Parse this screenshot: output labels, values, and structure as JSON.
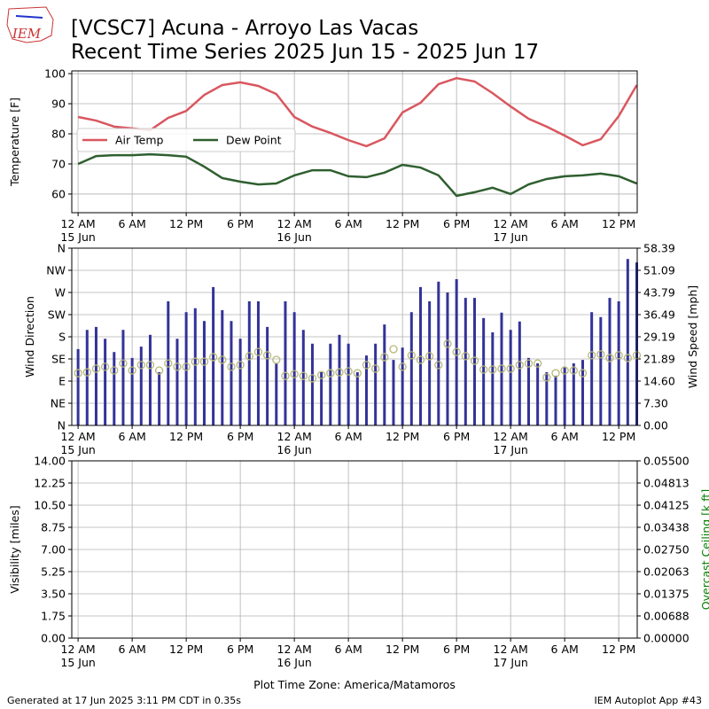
{
  "header": {
    "logo_text": "IEM",
    "title": "[VCSC7] Acuna - Arroyo Las Vacas",
    "subtitle": "Recent Time Series 2025 Jun 15 - 2025 Jun 17"
  },
  "footer": {
    "left": "Generated at 17 Jun 2025 3:11 PM CDT in 0.35s",
    "right": "IEM Autoplot App #43"
  },
  "chart_data": [
    {
      "type": "line",
      "y_label": "Temperature [F]",
      "grid": true,
      "legend": "center left",
      "xlim": [
        -0.7,
        62.05
      ],
      "ylim": [
        53.8,
        100.9
      ],
      "yticks": [
        60,
        70,
        80,
        90,
        100
      ],
      "xticks": [
        {
          "value": 0,
          "label": "12 AM\n15 Jun"
        },
        {
          "value": 6,
          "label": "6 AM"
        },
        {
          "value": 12,
          "label": "12 PM"
        },
        {
          "value": 18,
          "label": "6 PM"
        },
        {
          "value": 24,
          "label": "12 AM\n16 Jun"
        },
        {
          "value": 30,
          "label": "6 AM"
        },
        {
          "value": 36,
          "label": "12 PM"
        },
        {
          "value": 42,
          "label": "6 PM"
        },
        {
          "value": 48,
          "label": "12 AM\n17 Jun"
        },
        {
          "value": 54,
          "label": "6 AM"
        },
        {
          "value": 60,
          "label": "12 PM"
        }
      ],
      "x": [
        0,
        2,
        4,
        6,
        8,
        10,
        12,
        14,
        16,
        18,
        20,
        22,
        24,
        26,
        28,
        30,
        32,
        34,
        36,
        38,
        40,
        42,
        44,
        46,
        48,
        50,
        52,
        54,
        56,
        58,
        60,
        62
      ],
      "series": [
        {
          "name": "Air Temp",
          "color": "#d9575f",
          "values": [
            85.6,
            84.4,
            82.4,
            81.8,
            81.2,
            85.3,
            87.6,
            92.9,
            96.2,
            97.1,
            95.9,
            93.2,
            85.6,
            82.4,
            80.3,
            77.9,
            75.9,
            78.5,
            87.1,
            90.3,
            96.5,
            98.5,
            97.4,
            93.5,
            89.1,
            85.0,
            82.4,
            79.4,
            76.2,
            78.2,
            85.9,
            96.2
          ]
        },
        {
          "name": "Dew Point",
          "color": "#2f5f2f",
          "values": [
            70.0,
            72.6,
            72.9,
            72.9,
            73.2,
            72.9,
            72.4,
            69.1,
            65.3,
            64.1,
            63.2,
            63.5,
            66.2,
            67.9,
            67.9,
            65.9,
            65.6,
            67.1,
            69.7,
            68.8,
            66.2,
            59.4,
            60.6,
            62.1,
            60.0,
            63.2,
            65.0,
            65.9,
            66.2,
            66.8,
            65.9,
            63.5
          ]
        }
      ]
    },
    {
      "type": "bar",
      "y_label": "Wind Direction",
      "y2_label": "Wind Speed [mph]",
      "grid": true,
      "xlim": [
        -0.7,
        62.05
      ],
      "ylim": [
        0,
        360
      ],
      "y2lim": [
        0,
        58.39
      ],
      "yticks": [
        {
          "value": 0,
          "label": "N"
        },
        {
          "value": 45,
          "label": "NE"
        },
        {
          "value": 90,
          "label": "E"
        },
        {
          "value": 135,
          "label": "SE"
        },
        {
          "value": 180,
          "label": "S"
        },
        {
          "value": 225,
          "label": "SW"
        },
        {
          "value": 270,
          "label": "W"
        },
        {
          "value": 315,
          "label": "NW"
        },
        {
          "value": 360,
          "label": "N"
        }
      ],
      "y2ticks": [
        {
          "value": 0,
          "label": "0.00"
        },
        {
          "value": 7.3,
          "label": "7.30"
        },
        {
          "value": 14.6,
          "label": "14.60"
        },
        21.89,
        29.19,
        36.49,
        43.79,
        51.09,
        58.39
      ],
      "xticks": [
        {
          "value": 0,
          "label": "12 AM\n15 Jun"
        },
        {
          "value": 6,
          "label": "6 AM"
        },
        {
          "value": 12,
          "label": "12 PM"
        },
        {
          "value": 18,
          "label": "6 PM"
        },
        {
          "value": 24,
          "label": "12 AM\n16 Jun"
        },
        {
          "value": 30,
          "label": "6 AM"
        },
        {
          "value": 36,
          "label": "12 PM"
        },
        {
          "value": 42,
          "label": "6 PM"
        },
        {
          "value": 48,
          "label": "12 AM\n17 Jun"
        },
        {
          "value": 54,
          "label": "6 AM"
        },
        {
          "value": 60,
          "label": "12 PM"
        }
      ],
      "x": [
        0,
        1,
        2,
        3,
        4,
        5,
        6,
        7,
        8,
        9,
        10,
        11,
        12,
        13,
        14,
        15,
        16,
        17,
        18,
        19,
        20,
        21,
        22,
        23,
        24,
        25,
        26,
        27,
        28,
        29,
        30,
        31,
        32,
        33,
        34,
        35,
        36,
        37,
        38,
        39,
        40,
        41,
        42,
        43,
        44,
        45,
        46,
        47,
        48,
        49,
        50,
        51,
        52,
        53,
        54,
        55,
        56,
        57,
        58,
        59,
        60,
        61,
        62
      ],
      "series": [
        {
          "type": "bar",
          "axis": "y",
          "color": "#333399",
          "values": [
            155,
            194,
            200,
            176,
            149,
            194,
            137,
            160,
            184,
            108,
            252,
            176,
            230,
            238,
            212,
            281,
            234,
            212,
            176,
            252,
            252,
            200,
            126,
            252,
            230,
            194,
            166,
            108,
            166,
            184,
            166,
            108,
            142,
            166,
            205,
            133,
            158,
            230,
            281,
            252,
            292,
            270,
            297,
            259,
            259,
            218,
            189,
            229,
            194,
            211,
            137,
            126,
            108,
            101,
            119,
            126,
            133,
            230,
            220,
            259,
            252,
            338,
            331
          ]
        },
        {
          "type": "scatter",
          "axis": "y2",
          "color": "#b8b87a",
          "values": [
            17.2,
            17.5,
            18.7,
            19.3,
            18.1,
            20.4,
            18.1,
            19.9,
            19.9,
            18.1,
            20.4,
            19.3,
            19.3,
            21.0,
            21.0,
            22.5,
            21.6,
            19.3,
            19.9,
            22.8,
            24.2,
            23.1,
            21.6,
            16.3,
            16.9,
            16.3,
            15.5,
            16.6,
            17.2,
            17.5,
            17.8,
            17.2,
            19.9,
            18.7,
            22.5,
            25.1,
            19.3,
            23.1,
            21.6,
            22.8,
            19.9,
            26.9,
            24.2,
            22.8,
            21.3,
            18.4,
            18.4,
            18.7,
            18.7,
            19.9,
            20.4,
            20.4,
            15.8,
            17.2,
            18.1,
            18.1,
            17.2,
            23.1,
            23.4,
            22.2,
            23.1,
            22.2,
            23.1
          ]
        }
      ]
    },
    {
      "type": "line",
      "y_label": "Visibility [miles]",
      "y2_label": "Overcast Ceiling [k ft]",
      "y2_label_color": "green",
      "x_label": "Plot Time Zone: America/Matamoros",
      "grid": true,
      "xlim": [
        -0.7,
        62.05
      ],
      "ylim": [
        0,
        14
      ],
      "y2lim": [
        0,
        0.055
      ],
      "yticks": [
        {
          "value": 0,
          "label": "0.00"
        },
        1.75,
        {
          "value": 3.5,
          "label": "3.50"
        },
        5.25,
        {
          "value": 7,
          "label": "7.00"
        },
        8.75,
        {
          "value": 10.5,
          "label": "10.50"
        },
        12.25,
        {
          "value": 14,
          "label": "14.00"
        }
      ],
      "y2ticks": [
        {
          "value": 0,
          "label": "0.00000"
        },
        0.00688,
        0.01375,
        0.02063,
        {
          "value": 0.0275,
          "label": "0.02750"
        },
        0.03438,
        0.04125,
        0.04813,
        {
          "value": 0.055,
          "label": "0.05500"
        }
      ],
      "xticks": [
        {
          "value": 0,
          "label": "12 AM\n15 Jun"
        },
        {
          "value": 6,
          "label": "6 AM"
        },
        {
          "value": 12,
          "label": "12 PM"
        },
        {
          "value": 18,
          "label": "6 PM"
        },
        {
          "value": 24,
          "label": "12 AM\n16 Jun"
        },
        {
          "value": 30,
          "label": "6 AM"
        },
        {
          "value": 36,
          "label": "12 PM"
        },
        {
          "value": 42,
          "label": "6 PM"
        },
        {
          "value": 48,
          "label": "12 AM\n17 Jun"
        },
        {
          "value": 54,
          "label": "6 AM"
        },
        {
          "value": 60,
          "label": "12 PM"
        }
      ]
    }
  ]
}
